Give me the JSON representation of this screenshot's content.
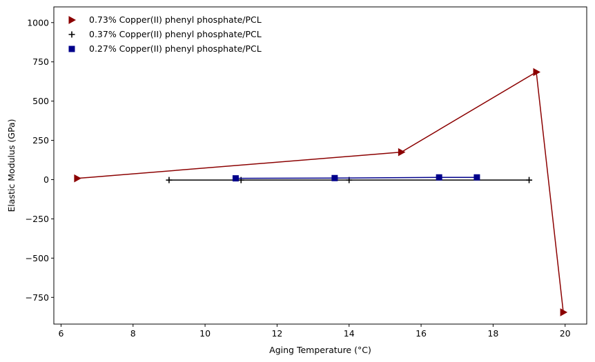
{
  "chart_data": {
    "type": "line",
    "xlabel": "Aging Temperature (°C)",
    "ylabel": "Elastic Modulus (GPa)",
    "xlim": [
      5.8,
      20.6
    ],
    "ylim": [
      -920,
      1100
    ],
    "x_ticks": [
      6,
      8,
      10,
      12,
      14,
      16,
      18,
      20
    ],
    "y_ticks": [
      -750,
      -500,
      -250,
      0,
      250,
      500,
      750,
      1000
    ],
    "grid": false,
    "legend_position": "top-left",
    "series": [
      {
        "name": "0.73% Copper(II) phenyl phosphate/PCL",
        "color": "#8b0000",
        "marker": "triangle-right",
        "x": [
          6.45,
          15.45,
          19.2,
          19.95
        ],
        "y": [
          8,
          175,
          685,
          -845
        ]
      },
      {
        "name": "0.37% Copper(II) phenyl phosphate/PCL",
        "color": "#000000",
        "marker": "plus",
        "x": [
          9.0,
          11.0,
          14.0,
          19.0
        ],
        "y": [
          -3,
          -3,
          -3,
          -3
        ]
      },
      {
        "name": "0.27% Copper(II) phenyl phosphate/PCL",
        "color": "#00008b",
        "marker": "square",
        "x": [
          10.85,
          13.6,
          16.5,
          17.55
        ],
        "y": [
          8,
          10,
          14,
          14
        ]
      }
    ]
  }
}
